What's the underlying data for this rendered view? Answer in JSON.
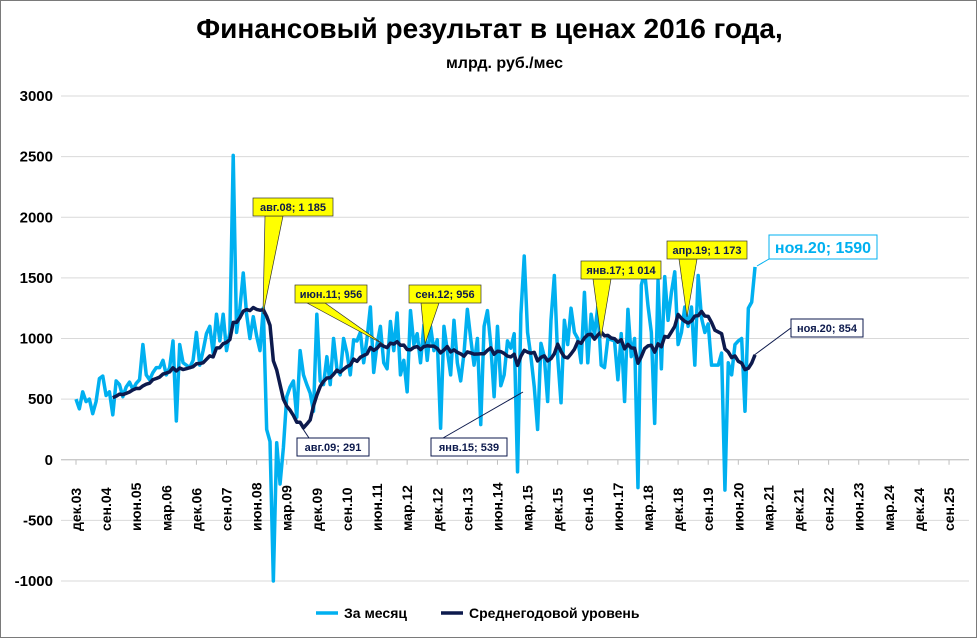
{
  "chart_data": {
    "type": "line",
    "title": "Финансовый результат в ценах 2016 года,",
    "subtitle": "млрд. руб./мес",
    "ylim": [
      -1000,
      3000
    ],
    "yticks": [
      3000,
      2500,
      2000,
      1500,
      1000,
      500,
      0,
      -500,
      -1000
    ],
    "xtick_labels": [
      "дек.03",
      "сен.04",
      "июн.05",
      "мар.06",
      "дек.06",
      "сен.07",
      "июн.08",
      "мар.09",
      "дек.09",
      "сен.10",
      "июн.11",
      "мар.12",
      "дек.12",
      "сен.13",
      "июн.14",
      "мар.15",
      "дек.15",
      "сен.16",
      "июн.17",
      "мар.18",
      "дек.18",
      "сен.19",
      "июн.20",
      "мар.21",
      "дек.21",
      "сен.22",
      "июн.23",
      "мар.24",
      "дек.24",
      "сен.25"
    ],
    "x_start": "дек.03",
    "x_step_months": 1,
    "grid": true,
    "legend_position": "bottom",
    "series": [
      {
        "name": "За месяц",
        "color": "#00b0f0",
        "values": [
          500,
          420,
          560,
          480,
          500,
          380,
          480,
          670,
          690,
          530,
          560,
          370,
          650,
          620,
          520,
          600,
          640,
          580,
          630,
          660,
          950,
          700,
          660,
          720,
          760,
          760,
          820,
          700,
          760,
          980,
          320,
          950,
          800,
          780,
          760,
          820,
          1050,
          780,
          900,
          1040,
          1100,
          880,
          1200,
          980,
          1200,
          900,
          1050,
          2510,
          1050,
          1250,
          1540,
          1200,
          1000,
          1180,
          1020,
          900,
          1250,
          250,
          150,
          -1000,
          140,
          -200,
          100,
          520,
          600,
          650,
          350,
          900,
          700,
          620,
          550,
          400,
          1200,
          650,
          620,
          850,
          620,
          1000,
          750,
          700,
          1000,
          880,
          700,
          990,
          980,
          1050,
          800,
          1000,
          1260,
          720,
          950,
          1100,
          800,
          750,
          1140,
          900,
          1210,
          700,
          820,
          560,
          1230,
          950,
          1040,
          800,
          1110,
          820,
          1100,
          900,
          990,
          260,
          1100,
          900,
          700,
          1150,
          800,
          650,
          880,
          1240,
          1000,
          780,
          1000,
          290,
          1100,
          1230,
          950,
          520,
          1100,
          610,
          700,
          980,
          920,
          1040,
          -100,
          1200,
          1680,
          1050,
          850,
          600,
          250,
          960,
          850,
          480,
          1150,
          1520,
          850,
          470,
          1150,
          950,
          1250,
          1050,
          1000,
          800,
          1380,
          800,
          1200,
          1030,
          1260,
          780,
          760,
          1000,
          990,
          980,
          660,
          1040,
          480,
          1240,
          850,
          1000,
          -230,
          1440,
          1550,
          1270,
          1050,
          300,
          1480,
          750,
          1510,
          1150,
          1380,
          1550,
          950,
          1050,
          1260,
          1100,
          1260,
          780,
          1520,
          1170,
          1050,
          1120,
          780,
          780,
          780,
          880,
          -250,
          800,
          700,
          950,
          980,
          1000,
          400,
          1250,
          1300,
          1590
        ]
      },
      {
        "name": "Среднегодовой уровень",
        "color": "#0d1a4d",
        "computed": "12-month moving average of За месяц"
      }
    ],
    "annotations": [
      {
        "label": "авг.08; 1 185",
        "style": "yellow"
      },
      {
        "label": "июн.11; 956",
        "style": "yellow"
      },
      {
        "label": "сен.12; 956",
        "style": "yellow"
      },
      {
        "label": "янв.17; 1 014",
        "style": "yellow"
      },
      {
        "label": "апр.19; 1 173",
        "style": "yellow"
      },
      {
        "label": "авг.09; 291",
        "style": "box"
      },
      {
        "label": "янв.15; 539",
        "style": "box"
      },
      {
        "label": "ноя.20; 854",
        "style": "box"
      },
      {
        "label": "ноя.20; 1590",
        "style": "cyan"
      }
    ]
  }
}
